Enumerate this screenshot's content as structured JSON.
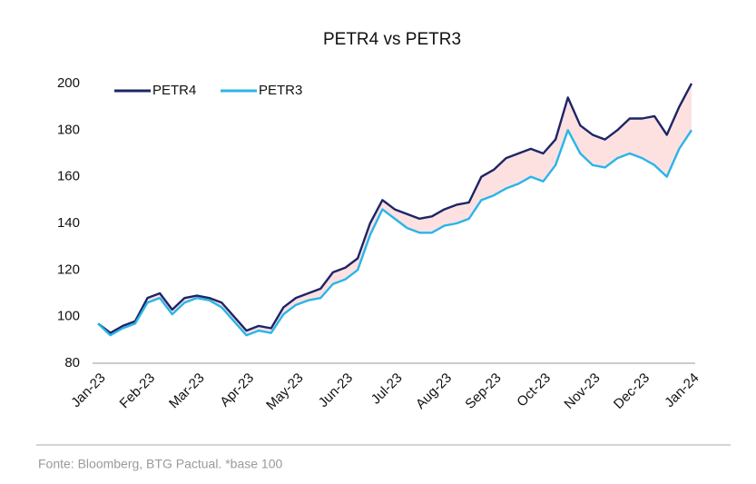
{
  "chart_data": {
    "type": "line",
    "title": "PETR4 vs PETR3",
    "categories": [
      "Jan-23",
      null,
      null,
      null,
      "Feb-23",
      null,
      null,
      null,
      "Mar-23",
      null,
      null,
      null,
      "Apr-23",
      null,
      null,
      null,
      "May-23",
      null,
      null,
      null,
      "Jun-23",
      null,
      null,
      null,
      "Jul-23",
      null,
      null,
      null,
      "Aug-23",
      null,
      null,
      null,
      "Sep-23",
      null,
      null,
      null,
      "Oct-23",
      null,
      null,
      null,
      "Nov-23",
      null,
      null,
      null,
      "Dec-23",
      null,
      null,
      null,
      "Jan-24"
    ],
    "series": [
      {
        "name": "PETR4",
        "color": "#1c2566",
        "values": [
          97,
          93,
          96,
          98,
          108,
          110,
          103,
          108,
          109,
          108,
          106,
          100,
          94,
          96,
          95,
          104,
          108,
          110,
          112,
          119,
          121,
          125,
          140,
          150,
          146,
          144,
          142,
          143,
          146,
          148,
          149,
          160,
          163,
          168,
          170,
          172,
          170,
          176,
          194,
          182,
          178,
          176,
          180,
          185,
          185,
          186,
          178,
          190,
          200
        ]
      },
      {
        "name": "PETR3",
        "color": "#29b5e8",
        "values": [
          97,
          92,
          95,
          97,
          106,
          108,
          101,
          106,
          108,
          107,
          104,
          98,
          92,
          94,
          93,
          101,
          105,
          107,
          108,
          114,
          116,
          120,
          135,
          146,
          142,
          138,
          136,
          136,
          139,
          140,
          142,
          150,
          152,
          155,
          157,
          160,
          158,
          165,
          180,
          170,
          165,
          164,
          168,
          170,
          168,
          165,
          160,
          172,
          180
        ]
      }
    ],
    "fill_color": "#fde1e1",
    "ylim": [
      80,
      200
    ],
    "yticks": [
      80,
      100,
      120,
      140,
      160,
      180,
      200
    ],
    "legend": "top-left",
    "source": "Fonte: Bloomberg, BTG Pactual. *base 100"
  }
}
